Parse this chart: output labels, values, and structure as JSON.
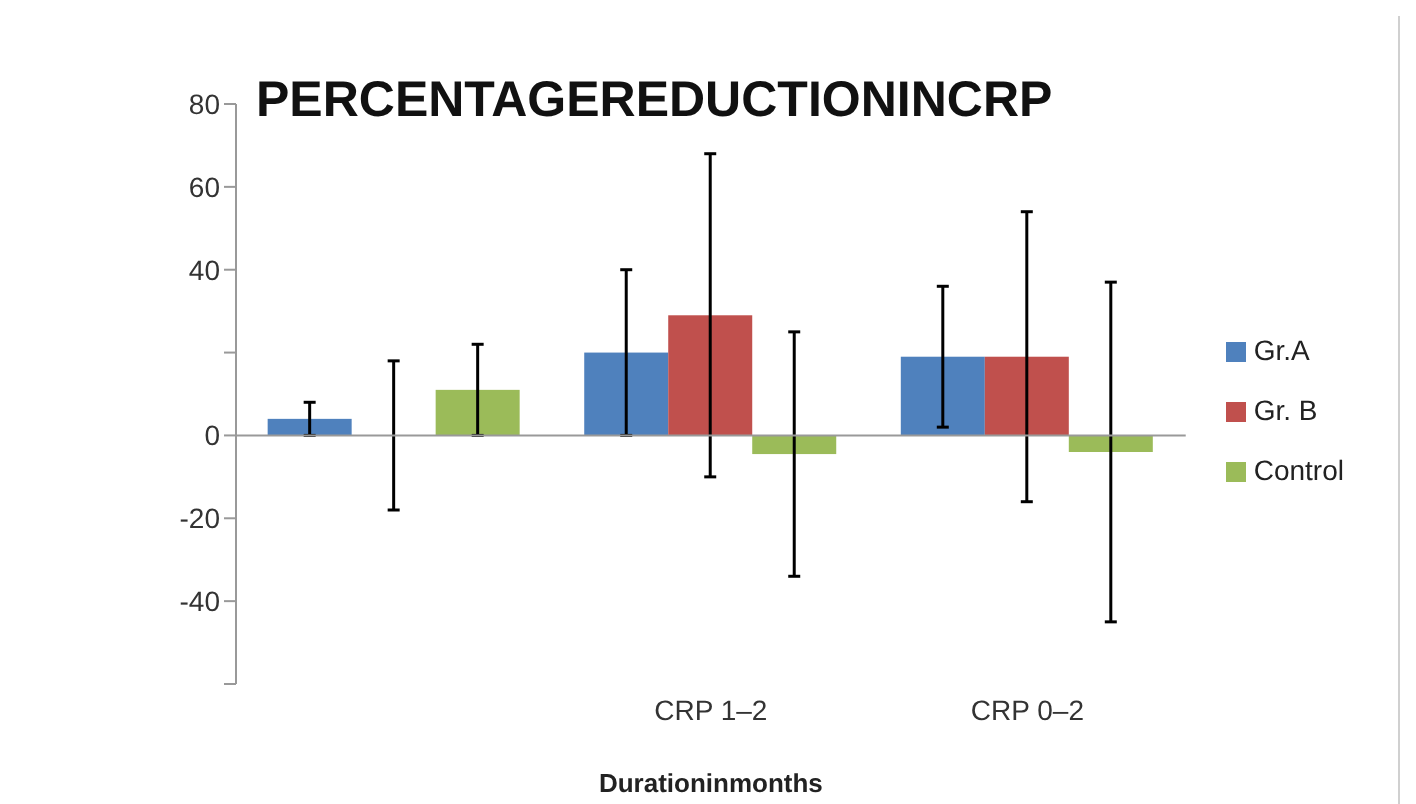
{
  "chart_data": {
    "type": "bar",
    "title": "PERCENTAGEREDUCTIONINCRP",
    "xlabel": "Durationinmonths",
    "categories": [
      null,
      "CRP 1–2",
      "CRP 0–2"
    ],
    "series": [
      {
        "name": "Gr.A",
        "color": "#4f81bd",
        "values": [
          4,
          20,
          19
        ],
        "errors": [
          4,
          20,
          17
        ]
      },
      {
        "name": "Gr. B",
        "color": "#c0504d",
        "values": [
          0,
          29,
          19
        ],
        "errors": [
          18,
          39,
          35
        ]
      },
      {
        "name": "Control",
        "color": "#9bbb59",
        "values": [
          11,
          -4.5,
          -4
        ],
        "errors": [
          11,
          29.5,
          41
        ]
      }
    ],
    "ylim": [
      -60,
      80
    ],
    "yticks": [
      80,
      60,
      40,
      {
        "value": 20,
        "label": null
      },
      0,
      -20,
      -40,
      {
        "value": -60,
        "label": null
      }
    ],
    "ref_lines": [
      {
        "axis": "y",
        "value": 0,
        "color": "#999999"
      }
    ],
    "legend": "right"
  }
}
